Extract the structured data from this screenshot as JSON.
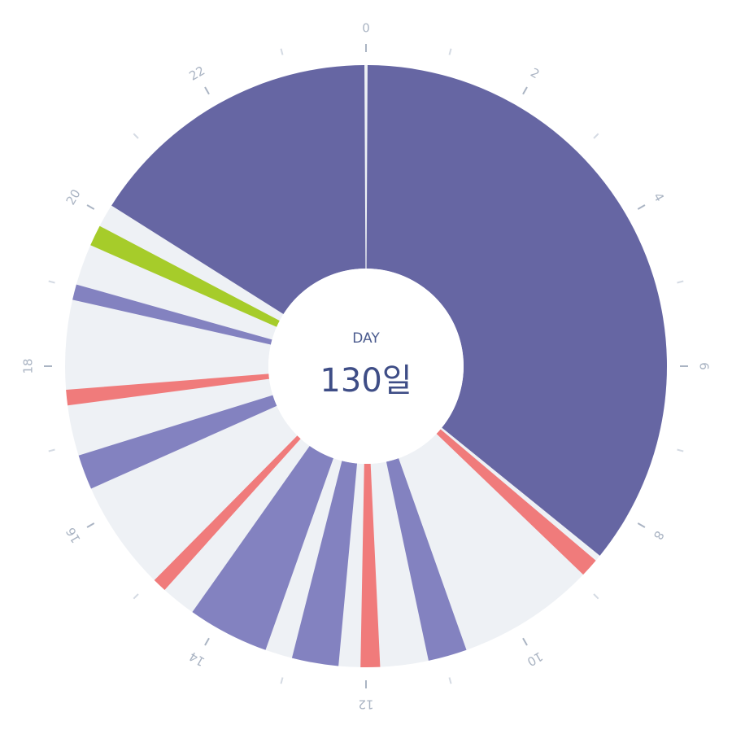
{
  "chart_data": {
    "type": "radial-clock",
    "center_label": "DAY",
    "center_value": "130일",
    "xlim": [
      0,
      24
    ],
    "xticks": [
      0,
      2,
      4,
      6,
      8,
      10,
      12,
      14,
      16,
      18,
      20,
      22
    ],
    "minor_ticks": [
      1,
      3,
      5,
      7,
      9,
      11,
      13,
      15,
      17,
      19,
      21,
      23
    ],
    "ring_color": "#eef1f5",
    "segments": [
      {
        "start": 0.02,
        "end": 8.6,
        "color": "#6666a3"
      },
      {
        "start": 8.68,
        "end": 8.92,
        "color": "#f07b7b"
      },
      {
        "start": 10.7,
        "end": 11.2,
        "color": "#8382c0"
      },
      {
        "start": 11.82,
        "end": 12.07,
        "color": "#f07b7b"
      },
      {
        "start": 12.35,
        "end": 12.95,
        "color": "#8382c0"
      },
      {
        "start": 13.3,
        "end": 14.35,
        "color": "#8382c0"
      },
      {
        "start": 14.8,
        "end": 14.98,
        "color": "#f07b7b"
      },
      {
        "start": 16.4,
        "end": 16.85,
        "color": "#8382c0"
      },
      {
        "start": 17.5,
        "end": 17.7,
        "color": "#f07b7b"
      },
      {
        "start": 18.85,
        "end": 19.05,
        "color": "#8382c0"
      },
      {
        "start": 19.58,
        "end": 19.85,
        "color": "#a6cc2a"
      },
      {
        "start": 20.15,
        "end": 23.98,
        "color": "#6666a3"
      }
    ]
  }
}
